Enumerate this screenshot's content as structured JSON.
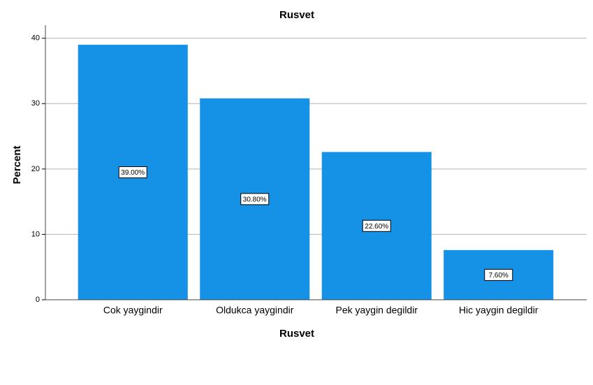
{
  "chart_data": {
    "type": "bar",
    "title": "Rusvet",
    "x_label": "Rusvet",
    "y_label": "Percent",
    "categories": [
      "Cok yaygindir",
      "Oldukca yaygindir",
      "Pek yaygin degildir",
      "Hic yaygin degildir"
    ],
    "values": [
      39.0,
      30.8,
      22.6,
      7.6
    ],
    "value_labels": [
      "39.00%",
      "30.80%",
      "22.60%",
      "7.60%"
    ],
    "color": "#1591e6",
    "ylim": [
      0,
      42
    ],
    "yticks": [
      0,
      10,
      20,
      30,
      40
    ],
    "grid": true
  }
}
